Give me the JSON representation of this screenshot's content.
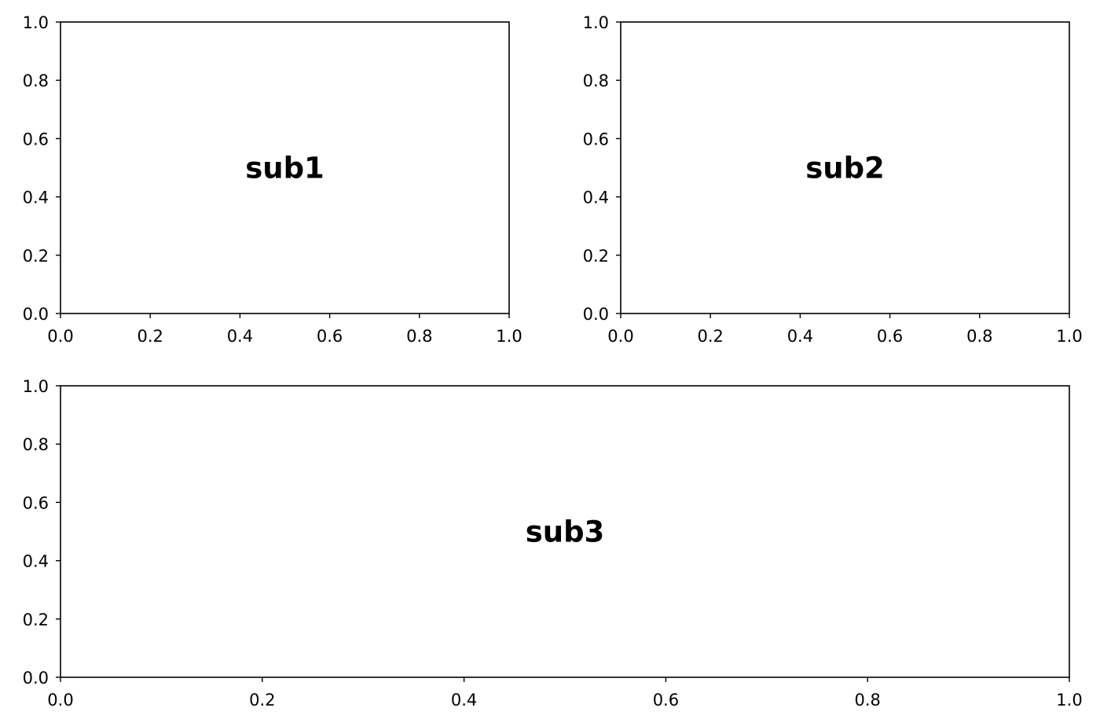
{
  "chart_data": [
    {
      "type": "scatter",
      "panel": "sub1",
      "title": "",
      "xlabel": "",
      "ylabel": "",
      "xlim": [
        0.0,
        1.0
      ],
      "ylim": [
        0.0,
        1.0
      ],
      "series": [],
      "xticks": [
        "0.0",
        "0.2",
        "0.4",
        "0.6",
        "0.8",
        "1.0"
      ],
      "yticks": [
        "0.0",
        "0.2",
        "0.4",
        "0.6",
        "0.8",
        "1.0"
      ],
      "grid": false,
      "annotations": [
        {
          "text": "sub1",
          "x": 0.5,
          "y": 0.5
        }
      ]
    },
    {
      "type": "scatter",
      "panel": "sub2",
      "title": "",
      "xlabel": "",
      "ylabel": "",
      "xlim": [
        0.0,
        1.0
      ],
      "ylim": [
        0.0,
        1.0
      ],
      "series": [],
      "xticks": [
        "0.0",
        "0.2",
        "0.4",
        "0.6",
        "0.8",
        "1.0"
      ],
      "yticks": [
        "0.0",
        "0.2",
        "0.4",
        "0.6",
        "0.8",
        "1.0"
      ],
      "grid": false,
      "annotations": [
        {
          "text": "sub2",
          "x": 0.5,
          "y": 0.5
        }
      ]
    },
    {
      "type": "scatter",
      "panel": "sub3",
      "title": "",
      "xlabel": "",
      "ylabel": "",
      "xlim": [
        0.0,
        1.0
      ],
      "ylim": [
        0.0,
        1.0
      ],
      "series": [],
      "xticks": [
        "0.0",
        "0.2",
        "0.4",
        "0.6",
        "0.8",
        "1.0"
      ],
      "yticks": [
        "0.0",
        "0.2",
        "0.4",
        "0.6",
        "0.8",
        "1.0"
      ],
      "grid": false,
      "annotations": [
        {
          "text": "sub3",
          "x": 0.5,
          "y": 0.5
        }
      ]
    }
  ],
  "colors": {
    "axis": "#000000",
    "background": "#ffffff"
  }
}
